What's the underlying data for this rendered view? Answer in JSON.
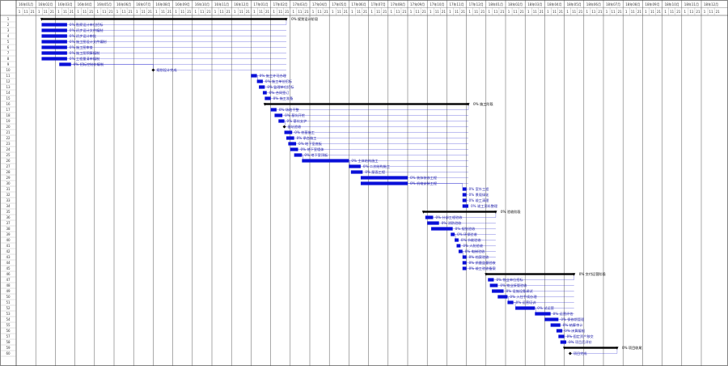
{
  "chart_data": {
    "type": "gantt",
    "colors": {
      "bar": "#0a10d8",
      "summary": "#000000",
      "link": "#2a2ad0",
      "grid": "#555555"
    },
    "timescale": {
      "major": [
        "16年01月",
        "16年02月",
        "16年03月",
        "16年04月",
        "16年05月",
        "16年06月",
        "16年07月",
        "16年08月",
        "16年09月",
        "16年10月",
        "16年11月",
        "16年12月",
        "17年01月",
        "17年02月",
        "17年03月",
        "17年04月",
        "17年05月",
        "17年06月",
        "17年07月",
        "17年08月",
        "17年09月",
        "17年10月",
        "17年11月",
        "17年12月",
        "18年01月",
        "18年02月",
        "18年03月",
        "18年04月",
        "18年05月",
        "18年06月",
        "18年07月",
        "18年08月",
        "18年09月",
        "18年10月",
        "18年11月",
        "18年12月"
      ],
      "minor": [
        "1",
        "11",
        "21"
      ]
    },
    "rows": [
      {
        "id": "1",
        "type": "summary",
        "start": 1.3,
        "end": 13.8,
        "label": "0% 规划设计阶段"
      },
      {
        "id": "2",
        "type": "task",
        "start": 1.3,
        "end": 2.6,
        "label": "0% 勘察设计单位招标"
      },
      {
        "id": "3",
        "type": "task",
        "start": 1.3,
        "end": 2.6,
        "label": "0% 初步设计文件编制"
      },
      {
        "id": "4",
        "type": "task",
        "start": 1.3,
        "end": 2.6,
        "label": "0% 初步设计审批"
      },
      {
        "id": "5",
        "type": "task",
        "start": 1.3,
        "end": 2.6,
        "label": "0% 施工图设计文件编制"
      },
      {
        "id": "6",
        "type": "task",
        "start": 1.3,
        "end": 2.6,
        "label": "0% 施工图审查"
      },
      {
        "id": "7",
        "type": "task",
        "start": 1.3,
        "end": 2.6,
        "label": "0% 施工图预算编制"
      },
      {
        "id": "8",
        "type": "task",
        "start": 1.3,
        "end": 2.6,
        "label": "0% 工程量清单编制"
      },
      {
        "id": "9",
        "type": "task",
        "start": 2.2,
        "end": 2.8,
        "label": "0% 招标控制价编制"
      },
      {
        "id": "10",
        "type": "milestone",
        "start": 7.0,
        "end": 7.0,
        "label": "规划设计完成"
      },
      {
        "id": "11",
        "type": "task",
        "start": 12.0,
        "end": 12.3,
        "label": "0% 施工许可办理"
      },
      {
        "id": "12",
        "type": "task",
        "start": 12.3,
        "end": 12.6,
        "label": "0% 施工单位招标"
      },
      {
        "id": "13",
        "type": "task",
        "start": 12.4,
        "end": 12.7,
        "label": "0% 监理单位招标"
      },
      {
        "id": "14",
        "type": "task",
        "start": 12.6,
        "end": 12.8,
        "label": "0% 合同签订"
      },
      {
        "id": "15",
        "type": "task",
        "start": 12.7,
        "end": 13.0,
        "label": "0% 施工准备"
      },
      {
        "id": "16",
        "type": "summary",
        "start": 12.7,
        "end": 23.1,
        "label": "0% 施工阶段"
      },
      {
        "id": "17",
        "type": "task",
        "start": 13.0,
        "end": 13.3,
        "label": "0% 场地平整"
      },
      {
        "id": "18",
        "type": "task",
        "start": 13.2,
        "end": 13.6,
        "label": "0% 基坑开挖"
      },
      {
        "id": "19",
        "type": "task",
        "start": 13.4,
        "end": 13.7,
        "label": "0% 基坑支护"
      },
      {
        "id": "20",
        "type": "milestone",
        "start": 13.7,
        "end": 13.7,
        "label": "基坑验收"
      },
      {
        "id": "21",
        "type": "task",
        "start": 13.7,
        "end": 14.1,
        "label": "0% 桩基施工"
      },
      {
        "id": "22",
        "type": "task",
        "start": 13.8,
        "end": 14.2,
        "label": "0% 承台施工"
      },
      {
        "id": "23",
        "type": "task",
        "start": 13.9,
        "end": 14.3,
        "label": "0% 地下室底板"
      },
      {
        "id": "24",
        "type": "task",
        "start": 14.0,
        "end": 14.4,
        "label": "0% 地下室墙体"
      },
      {
        "id": "25",
        "type": "task",
        "start": 14.2,
        "end": 14.6,
        "label": "0% 地下室顶板"
      },
      {
        "id": "26",
        "type": "task",
        "start": 14.6,
        "end": 17.0,
        "label": "0% 主体结构施工"
      },
      {
        "id": "27",
        "type": "task",
        "start": 17.0,
        "end": 17.6,
        "label": "0% 二次结构施工"
      },
      {
        "id": "28",
        "type": "task",
        "start": 17.1,
        "end": 17.7,
        "label": "0% 屋面工程"
      },
      {
        "id": "29",
        "type": "task",
        "start": 17.6,
        "end": 20.0,
        "label": "0% 装饰装修工程"
      },
      {
        "id": "30",
        "type": "task",
        "start": 17.6,
        "end": 20.0,
        "label": "0% 机电安装工程"
      },
      {
        "id": "31",
        "type": "task",
        "start": 22.8,
        "end": 23.0,
        "label": "0% 室外工程"
      },
      {
        "id": "32",
        "type": "task",
        "start": 22.8,
        "end": 23.0,
        "label": "0% 景观绿化"
      },
      {
        "id": "33",
        "type": "task",
        "start": 22.8,
        "end": 23.0,
        "label": "0% 竣工清理"
      },
      {
        "id": "34",
        "type": "task",
        "start": 22.8,
        "end": 23.1,
        "label": "0% 竣工资料整理"
      },
      {
        "id": "35",
        "type": "summary",
        "start": 20.8,
        "end": 24.5,
        "label": "0% 验收阶段"
      },
      {
        "id": "36",
        "type": "task",
        "start": 20.9,
        "end": 21.3,
        "label": "0% 分部工程验收"
      },
      {
        "id": "37",
        "type": "task",
        "start": 21.0,
        "end": 21.6,
        "label": "0% 消防验收"
      },
      {
        "id": "38",
        "type": "task",
        "start": 21.2,
        "end": 22.3,
        "label": "0% 规划验收"
      },
      {
        "id": "39",
        "type": "task",
        "start": 22.2,
        "end": 22.4,
        "label": "0% 环保验收"
      },
      {
        "id": "40",
        "type": "task",
        "start": 22.4,
        "end": 22.6,
        "label": "0% 节能验收"
      },
      {
        "id": "41",
        "type": "task",
        "start": 22.5,
        "end": 22.7,
        "label": "0% 人防验收"
      },
      {
        "id": "42",
        "type": "task",
        "start": 22.6,
        "end": 22.8,
        "label": "0% 电梯验收"
      },
      {
        "id": "43",
        "type": "task",
        "start": 22.8,
        "end": 23.0,
        "label": "0% 档案验收"
      },
      {
        "id": "44",
        "type": "task",
        "start": 22.8,
        "end": 23.0,
        "label": "0% 质量监督验收"
      },
      {
        "id": "45",
        "type": "task",
        "start": 22.8,
        "end": 23.0,
        "label": "0% 竣工验收备案"
      },
      {
        "id": "46",
        "type": "summary",
        "start": 24.0,
        "end": 28.5,
        "label": "0% 交付运营阶段"
      },
      {
        "id": "47",
        "type": "task",
        "start": 24.1,
        "end": 24.4,
        "label": "0% 物业单位招标"
      },
      {
        "id": "48",
        "type": "task",
        "start": 24.2,
        "end": 24.6,
        "label": "0% 物业接管验收"
      },
      {
        "id": "49",
        "type": "task",
        "start": 24.3,
        "end": 24.9,
        "label": "0% 设施设备调试"
      },
      {
        "id": "50",
        "type": "task",
        "start": 24.6,
        "end": 25.1,
        "label": "0% 入住手续办理"
      },
      {
        "id": "51",
        "type": "task",
        "start": 25.1,
        "end": 25.4,
        "label": "0% 运营培训"
      },
      {
        "id": "52",
        "type": "task",
        "start": 25.5,
        "end": 26.5,
        "label": "0% 试运营"
      },
      {
        "id": "53",
        "type": "task",
        "start": 26.5,
        "end": 27.3,
        "label": "0% 运营评估"
      },
      {
        "id": "54",
        "type": "task",
        "start": 27.0,
        "end": 27.7,
        "label": "0% 保修期管理"
      },
      {
        "id": "55",
        "type": "task",
        "start": 27.3,
        "end": 27.8,
        "label": "0% 结算审计"
      },
      {
        "id": "56",
        "type": "task",
        "start": 27.6,
        "end": 27.9,
        "label": "0% 决算编制"
      },
      {
        "id": "57",
        "type": "task",
        "start": 27.7,
        "end": 28.0,
        "label": "0% 固定资产移交"
      },
      {
        "id": "58",
        "type": "task",
        "start": 27.8,
        "end": 28.1,
        "label": "0% 项目后评价"
      },
      {
        "id": "59",
        "type": "summary",
        "start": 28.0,
        "end": 30.7,
        "label": "0% 项目收尾"
      },
      {
        "id": "60",
        "type": "milestone",
        "start": 28.3,
        "end": 28.3,
        "label": "项目完成"
      }
    ]
  }
}
